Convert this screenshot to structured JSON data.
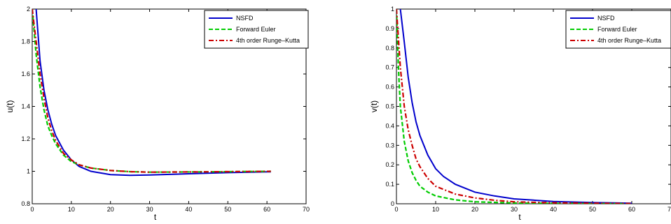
{
  "chart_data": [
    {
      "type": "line",
      "xlabel": "t",
      "ylabel": "u(t)",
      "xlim": [
        0,
        70
      ],
      "ylim": [
        0.8,
        2
      ],
      "xticks": [
        "0",
        "10",
        "20",
        "30",
        "40",
        "50",
        "60",
        "70"
      ],
      "yticks": [
        "0.8",
        "1",
        "1.2",
        "1.4",
        "1.6",
        "1.8",
        "2"
      ],
      "grid": false,
      "legend": "top-right",
      "series": [
        {
          "name": "NSFD",
          "color": "#0000cc",
          "style": "solid",
          "points": [
            [
              1,
              2.0
            ],
            [
              2,
              1.68
            ],
            [
              3,
              1.5
            ],
            [
              4,
              1.38
            ],
            [
              5,
              1.29
            ],
            [
              6,
              1.22
            ],
            [
              8,
              1.13
            ],
            [
              10,
              1.07
            ],
            [
              12,
              1.03
            ],
            [
              15,
              1.0
            ],
            [
              20,
              0.98
            ],
            [
              25,
              0.975
            ],
            [
              30,
              0.977
            ],
            [
              40,
              0.985
            ],
            [
              50,
              0.992
            ],
            [
              61,
              0.997
            ]
          ]
        },
        {
          "name": "Forward Euler",
          "color": "#00cc00",
          "style": "dashed",
          "points": [
            [
              0,
              2.0
            ],
            [
              1,
              1.72
            ],
            [
              2,
              1.52
            ],
            [
              3,
              1.38
            ],
            [
              4,
              1.28
            ],
            [
              5,
              1.22
            ],
            [
              6,
              1.17
            ],
            [
              8,
              1.1
            ],
            [
              10,
              1.06
            ],
            [
              12,
              1.04
            ],
            [
              15,
              1.02
            ],
            [
              20,
              1.005
            ],
            [
              25,
              0.998
            ],
            [
              30,
              0.995
            ],
            [
              40,
              0.996
            ],
            [
              50,
              0.998
            ],
            [
              61,
              1.0
            ]
          ]
        },
        {
          "name": "4th order Runge–Kutta",
          "color": "#cc0000",
          "style": "dashdot",
          "points": [
            [
              0,
              2.0
            ],
            [
              1,
              1.8
            ],
            [
              2,
              1.6
            ],
            [
              3,
              1.45
            ],
            [
              4,
              1.33
            ],
            [
              5,
              1.25
            ],
            [
              6,
              1.19
            ],
            [
              8,
              1.11
            ],
            [
              10,
              1.07
            ],
            [
              12,
              1.04
            ],
            [
              15,
              1.02
            ],
            [
              20,
              1.005
            ],
            [
              25,
              0.998
            ],
            [
              30,
              0.995
            ],
            [
              40,
              0.996
            ],
            [
              50,
              0.998
            ],
            [
              61,
              1.0
            ]
          ]
        }
      ]
    },
    {
      "type": "line",
      "xlabel": "t",
      "ylabel": "v(t)",
      "xlim": [
        0,
        70
      ],
      "ylim": [
        0,
        1
      ],
      "xticks": [
        "0",
        "10",
        "20",
        "30",
        "40",
        "50",
        "60",
        "70"
      ],
      "yticks": [
        "0",
        "0.1",
        "0.2",
        "0.3",
        "0.4",
        "0.5",
        "0.6",
        "0.7",
        "0.8",
        "0.9",
        "1"
      ],
      "grid": false,
      "legend": "top-right",
      "series": [
        {
          "name": "NSFD",
          "color": "#0000cc",
          "style": "solid",
          "points": [
            [
              1,
              1.0
            ],
            [
              2,
              0.83
            ],
            [
              3,
              0.65
            ],
            [
              4,
              0.52
            ],
            [
              5,
              0.42
            ],
            [
              6,
              0.35
            ],
            [
              8,
              0.25
            ],
            [
              10,
              0.18
            ],
            [
              12,
              0.14
            ],
            [
              15,
              0.1
            ],
            [
              20,
              0.06
            ],
            [
              25,
              0.04
            ],
            [
              30,
              0.025
            ],
            [
              40,
              0.012
            ],
            [
              50,
              0.006
            ],
            [
              60,
              0.003
            ]
          ]
        },
        {
          "name": "Forward Euler",
          "color": "#00cc00",
          "style": "dashed",
          "points": [
            [
              0,
              1.0
            ],
            [
              0.5,
              0.7
            ],
            [
              1,
              0.5
            ],
            [
              2,
              0.32
            ],
            [
              3,
              0.22
            ],
            [
              4,
              0.16
            ],
            [
              5,
              0.12
            ],
            [
              6,
              0.09
            ],
            [
              8,
              0.06
            ],
            [
              10,
              0.04
            ],
            [
              15,
              0.02
            ],
            [
              20,
              0.01
            ],
            [
              30,
              0.004
            ],
            [
              40,
              0.002
            ],
            [
              50,
              0.001
            ],
            [
              60,
              0.0
            ]
          ]
        },
        {
          "name": "4th order Runge–Kutta",
          "color": "#cc0000",
          "style": "dashdot",
          "points": [
            [
              0,
              1.0
            ],
            [
              0.5,
              0.85
            ],
            [
              1,
              0.7
            ],
            [
              2,
              0.5
            ],
            [
              3,
              0.38
            ],
            [
              4,
              0.3
            ],
            [
              5,
              0.23
            ],
            [
              6,
              0.19
            ],
            [
              8,
              0.13
            ],
            [
              10,
              0.09
            ],
            [
              15,
              0.05
            ],
            [
              20,
              0.03
            ],
            [
              25,
              0.018
            ],
            [
              30,
              0.01
            ],
            [
              40,
              0.005
            ],
            [
              50,
              0.003
            ],
            [
              60,
              0.001
            ]
          ]
        }
      ]
    }
  ]
}
